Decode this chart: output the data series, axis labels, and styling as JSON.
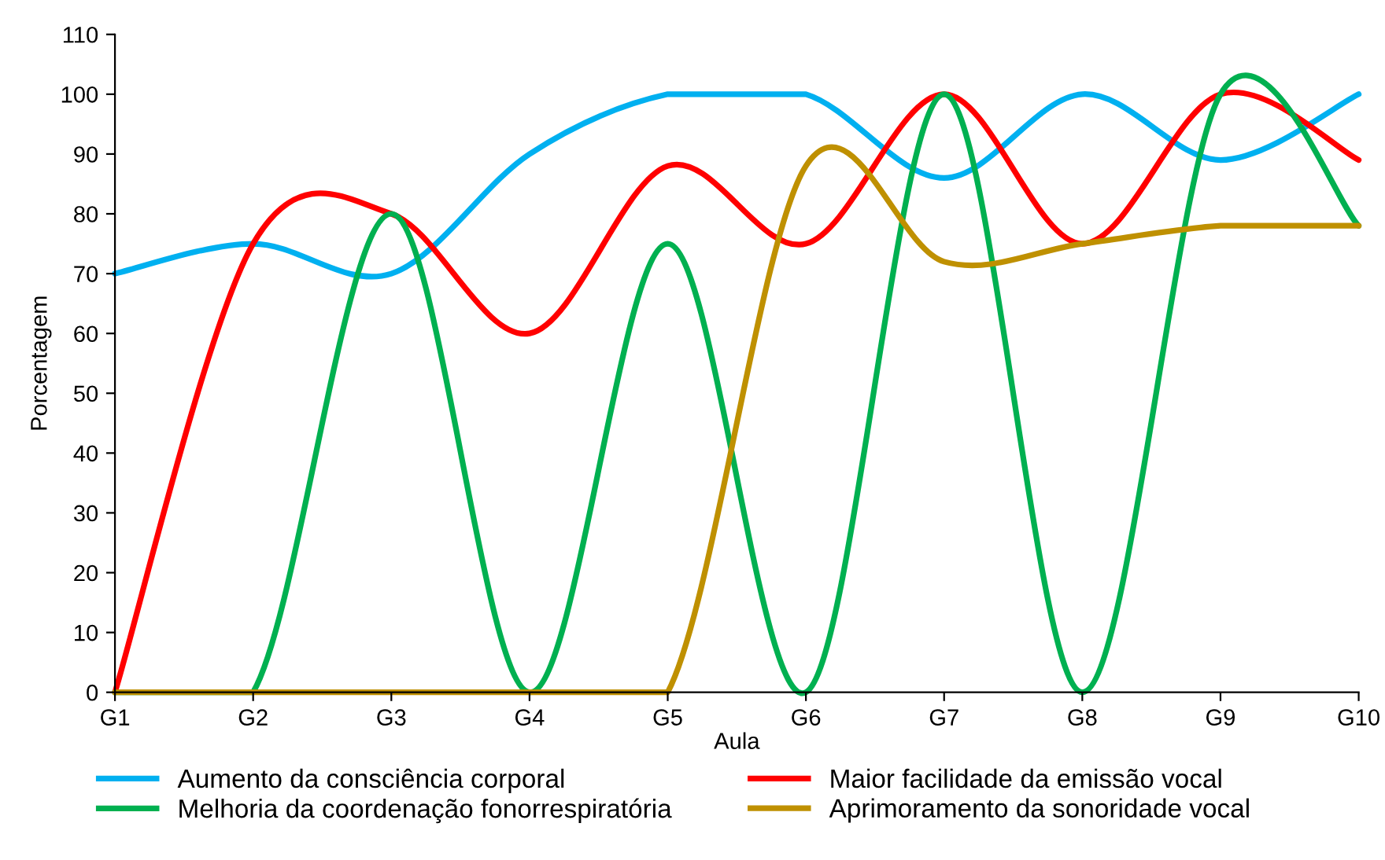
{
  "chart_data": {
    "type": "line",
    "xlabel": "Aula",
    "ylabel": "Porcentagem",
    "categories": [
      "G1",
      "G2",
      "G3",
      "G4",
      "G5",
      "G6",
      "G7",
      "G8",
      "G9",
      "G10"
    ],
    "series": [
      {
        "name": "Aumento da consciência corporal",
        "color": "#00b0f0",
        "values": [
          70,
          75,
          70,
          90,
          100,
          100,
          86,
          100,
          89,
          100
        ]
      },
      {
        "name": "Maior facilidade da emissão vocal",
        "color": "#ff0000",
        "values": [
          0,
          75,
          80,
          60,
          88,
          75,
          100,
          75,
          100,
          89
        ]
      },
      {
        "name": "Melhoria da coordenação fonorrespiratória",
        "color": "#00b050",
        "values": [
          0,
          0,
          80,
          0,
          75,
          0,
          100,
          0,
          100,
          78
        ]
      },
      {
        "name": "Aprimoramento da sonoridade vocal",
        "color": "#bf9000",
        "values": [
          0,
          0,
          0,
          0,
          0,
          88,
          72,
          75,
          78,
          78
        ]
      }
    ],
    "ylim": [
      0,
      110
    ],
    "yticks": [
      0,
      10,
      20,
      30,
      40,
      50,
      60,
      70,
      80,
      90,
      100,
      110
    ],
    "grid": false,
    "legend": "bottom",
    "marker": "none",
    "line_style": "solid"
  }
}
